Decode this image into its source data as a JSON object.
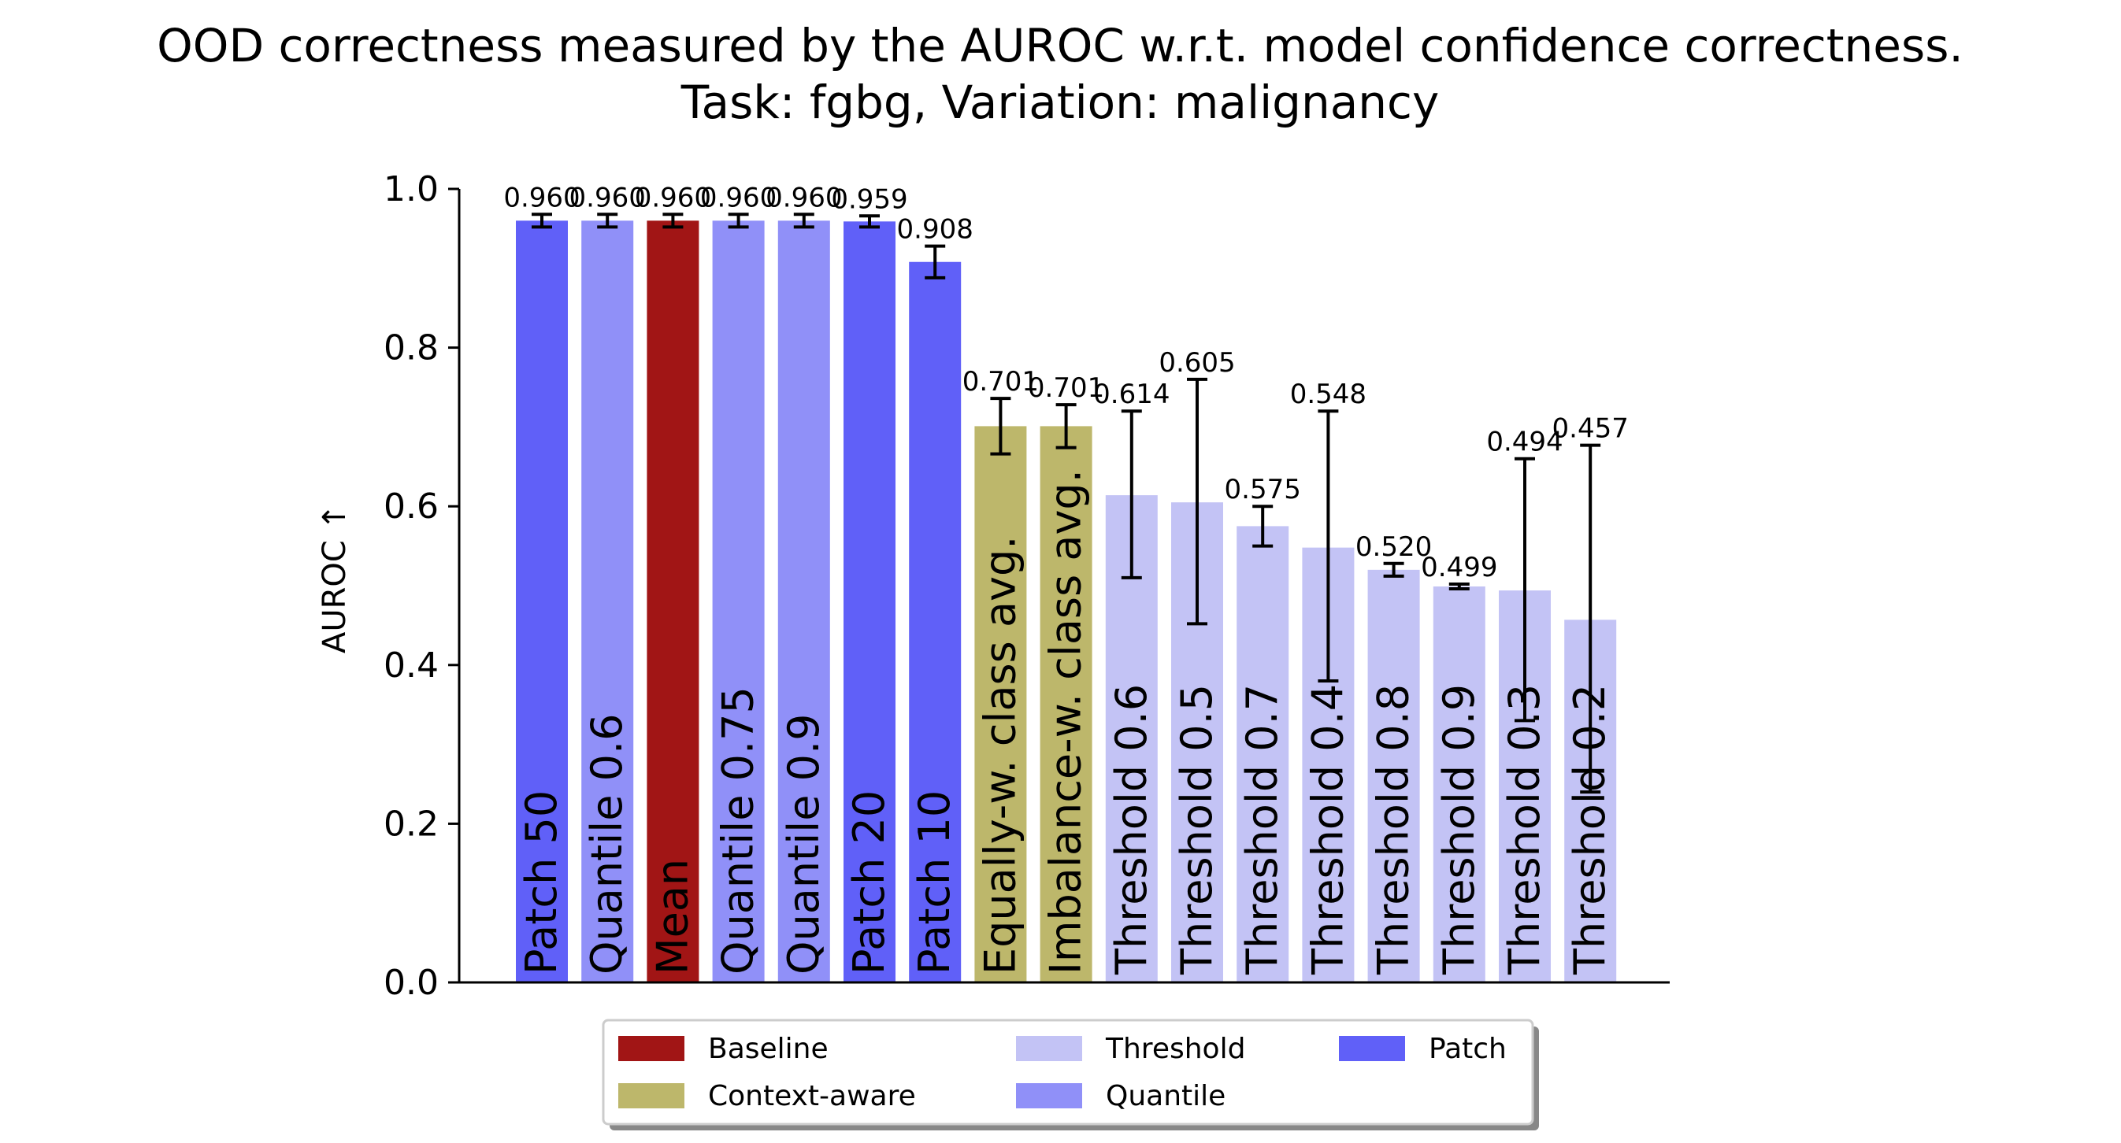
{
  "chart_data": {
    "type": "bar",
    "title": "OOD correctness measured by the AUROC w.r.t. model confidence correctness.",
    "subtitle": "Task: fgbg, Variation: malignancy",
    "xlabel": "",
    "ylabel": "AUROC ↑",
    "ylim": [
      0,
      1.0
    ],
    "yticks": [
      "0.0",
      "0.2",
      "0.4",
      "0.6",
      "0.8",
      "1.0"
    ],
    "grid": false,
    "categories": [
      "Patch 50",
      "Quantile 0.6",
      "Mean",
      "Quantile 0.75",
      "Quantile 0.9",
      "Patch 20",
      "Patch 10",
      "Equally-w. class avg.",
      "Imbalance-w. class avg.",
      "Threshold 0.6",
      "Threshold 0.5",
      "Threshold 0.7",
      "Threshold 0.4",
      "Threshold 0.8",
      "Threshold 0.9",
      "Threshold 0.3",
      "Threshold 0.2"
    ],
    "values": [
      0.96,
      0.96,
      0.96,
      0.96,
      0.96,
      0.959,
      0.908,
      0.701,
      0.701,
      0.614,
      0.605,
      0.575,
      0.548,
      0.52,
      0.499,
      0.494,
      0.457
    ],
    "value_labels": [
      "0.960",
      "0.960",
      "0.960",
      "0.960",
      "0.960",
      "0.959",
      "0.908",
      "0.701",
      "0.701",
      "0.614",
      "0.605",
      "0.575",
      "0.548",
      "0.520",
      "0.499",
      "0.494",
      "0.457"
    ],
    "error_low": [
      0.952,
      0.952,
      0.952,
      0.952,
      0.952,
      0.952,
      0.888,
      0.666,
      0.674,
      0.51,
      0.452,
      0.55,
      0.38,
      0.512,
      0.496,
      0.33,
      0.24
    ],
    "error_high": [
      0.968,
      0.968,
      0.968,
      0.968,
      0.968,
      0.966,
      0.928,
      0.736,
      0.728,
      0.72,
      0.76,
      0.6,
      0.72,
      0.528,
      0.502,
      0.66,
      0.677
    ],
    "groups": [
      "Patch",
      "Quantile",
      "Baseline",
      "Quantile",
      "Quantile",
      "Patch",
      "Patch",
      "Context-aware",
      "Context-aware",
      "Threshold",
      "Threshold",
      "Threshold",
      "Threshold",
      "Threshold",
      "Threshold",
      "Threshold",
      "Threshold"
    ],
    "legend_position": "bottom-center",
    "legend": [
      {
        "name": "Baseline",
        "color": "#a11515"
      },
      {
        "name": "Context-aware",
        "color": "#bdb76b"
      },
      {
        "name": "Threshold",
        "color": "#c3c3f5"
      },
      {
        "name": "Quantile",
        "color": "#9090f8"
      },
      {
        "name": "Patch",
        "color": "#6060f8"
      }
    ],
    "colors": {
      "Baseline": "#a11515",
      "Context-aware": "#bdb76b",
      "Threshold": "#c3c3f5",
      "Quantile": "#9090f8",
      "Patch": "#6060f8"
    }
  }
}
